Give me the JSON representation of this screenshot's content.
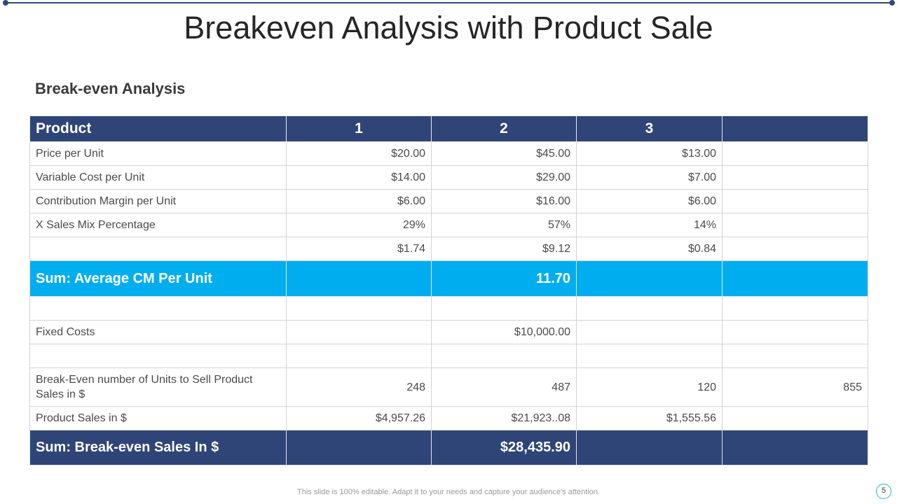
{
  "slide": {
    "title": "Breakeven Analysis with Product Sale",
    "subtitle": "Break-even Analysis",
    "footer_note": "This slide is 100% editable. Adapt it to your needs and capture your audience's attention.",
    "page_number": "5"
  },
  "table": {
    "header": [
      "Product",
      "1",
      "2",
      "3",
      ""
    ],
    "rows": [
      {
        "label": "Price per Unit",
        "cells": [
          "$20.00",
          "$45.00",
          "$13.00",
          ""
        ]
      },
      {
        "label": "Variable Cost per Unit",
        "cells": [
          "$14.00",
          "$29.00",
          "$7.00",
          ""
        ]
      },
      {
        "label": "Contribution  Margin  per Unit",
        "cells": [
          "$6.00",
          "$16.00",
          "$6.00",
          ""
        ]
      },
      {
        "label": "X Sales  Mix  Percentage",
        "cells": [
          "29%",
          "57%",
          "14%",
          ""
        ]
      },
      {
        "label": "",
        "cells": [
          "$1.74",
          "$9.12",
          "$0.84",
          ""
        ]
      }
    ],
    "avg_cm": {
      "label": "Sum: Average CM Per Unit",
      "value": "11.70"
    },
    "fixed_costs": {
      "label": "Fixed  Costs",
      "value": "$10,000.00"
    },
    "breakeven_units": {
      "label": "Break-Even  number  of Units to Sell Product Sales  in  $",
      "cells": [
        "248",
        "487",
        "120",
        "855"
      ]
    },
    "product_sales": {
      "label": "Product  Sales  in $",
      "cells": [
        "$4,957.26",
        "$21,923..08",
        "$1,555.56",
        ""
      ]
    },
    "breakeven_sales": {
      "label": "Sum: Break-even Sales In $",
      "value": "$28,435.90"
    }
  }
}
